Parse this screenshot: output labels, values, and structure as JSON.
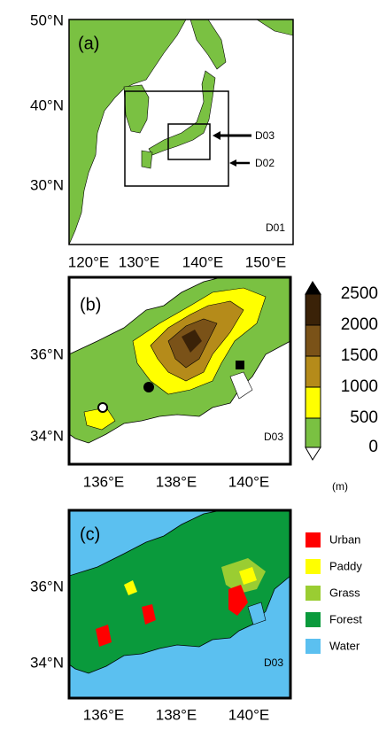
{
  "panel_a": {
    "label": "(a)",
    "y_ticks": [
      "50°N",
      "40°N",
      "30°N"
    ],
    "x_ticks": [
      "120°E",
      "130°E",
      "140°E",
      "150°E"
    ],
    "domains": [
      "D03",
      "D02",
      "D01"
    ]
  },
  "panel_b": {
    "label": "(b)",
    "y_ticks": [
      "36°N",
      "34°N"
    ],
    "x_ticks": [
      "136°E",
      "138°E",
      "140°E"
    ],
    "domain": "D03",
    "colorbar": {
      "ticks": [
        2500,
        2000,
        1500,
        1000,
        500,
        0
      ],
      "unit": "(m)"
    }
  },
  "panel_c": {
    "label": "(c)",
    "y_ticks": [
      "36°N",
      "34°N"
    ],
    "x_ticks": [
      "136°E",
      "138°E",
      "140°E"
    ],
    "domain": "D03",
    "legend": [
      "Urban",
      "Paddy",
      "Grass",
      "Forest",
      "Water"
    ]
  }
}
